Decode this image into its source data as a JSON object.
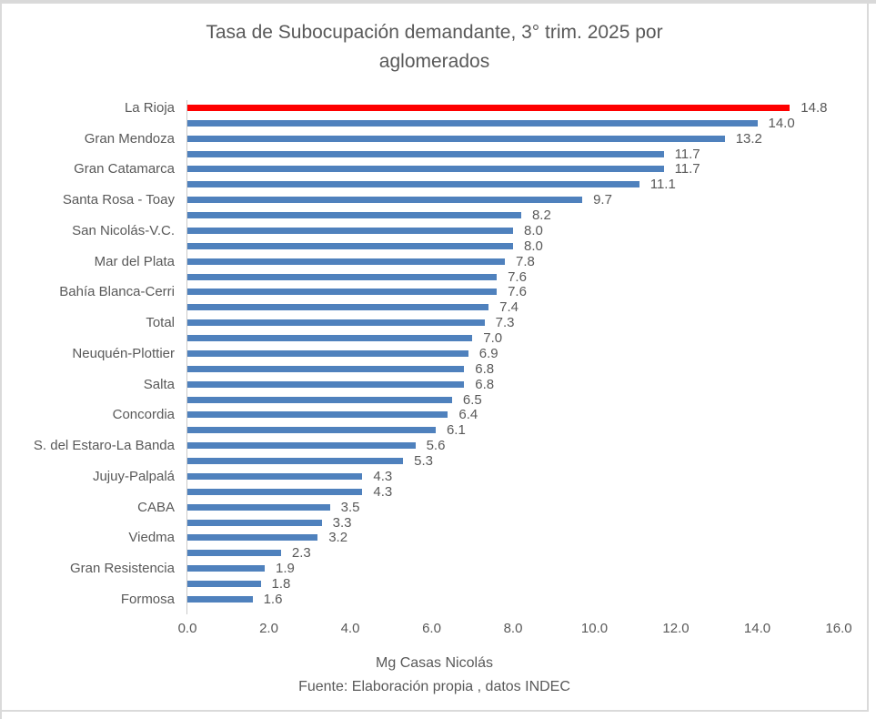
{
  "window": {
    "background": "#ffffff",
    "border_color": "#d9d9d9"
  },
  "chart_data": {
    "type": "bar",
    "orientation": "horizontal",
    "title": "Tasa de Subocupación demandante, 3° trim. 2025 por aglomerados",
    "title_lines": [
      "Tasa de Subocupación demandante, 3° trim. 2025 por",
      "aglomerados"
    ],
    "xlabel": "",
    "ylabel": "",
    "xlim": [
      0,
      16
    ],
    "x_ticks": [
      "0.0",
      "2.0",
      "4.0",
      "6.0",
      "8.0",
      "10.0",
      "12.0",
      "14.0",
      "16.0"
    ],
    "grid": false,
    "legend": false,
    "bar_color": "#4f81bd",
    "highlight_color": "#fe0000",
    "text_color": "#595959",
    "value_label_decimals": 1,
    "rows": [
      {
        "label": "La Rioja",
        "value": 14.8,
        "highlight": true
      },
      {
        "label": "",
        "value": 14.0
      },
      {
        "label": "Gran Mendoza",
        "value": 13.2
      },
      {
        "label": "",
        "value": 11.7
      },
      {
        "label": "Gran Catamarca",
        "value": 11.7
      },
      {
        "label": "",
        "value": 11.1
      },
      {
        "label": "Santa Rosa - Toay",
        "value": 9.7
      },
      {
        "label": "",
        "value": 8.2
      },
      {
        "label": "San Nicolás-V.C.",
        "value": 8.0
      },
      {
        "label": "",
        "value": 8.0
      },
      {
        "label": "Mar del Plata",
        "value": 7.8
      },
      {
        "label": "",
        "value": 7.6
      },
      {
        "label": "Bahía Blanca-Cerri",
        "value": 7.6
      },
      {
        "label": "",
        "value": 7.4
      },
      {
        "label": "Total",
        "value": 7.3
      },
      {
        "label": "",
        "value": 7.0
      },
      {
        "label": "Neuquén-Plottier",
        "value": 6.9
      },
      {
        "label": "",
        "value": 6.8
      },
      {
        "label": "Salta",
        "value": 6.8
      },
      {
        "label": "",
        "value": 6.5
      },
      {
        "label": "Concordia",
        "value": 6.4
      },
      {
        "label": "",
        "value": 6.1
      },
      {
        "label": "S. del Estaro-La Banda",
        "value": 5.6
      },
      {
        "label": "",
        "value": 5.3
      },
      {
        "label": "Jujuy-Palpalá",
        "value": 4.3
      },
      {
        "label": "",
        "value": 4.3
      },
      {
        "label": "CABA",
        "value": 3.5
      },
      {
        "label": "",
        "value": 3.3
      },
      {
        "label": "Viedma",
        "value": 3.2
      },
      {
        "label": "",
        "value": 2.3
      },
      {
        "label": "Gran Resistencia",
        "value": 1.9
      },
      {
        "label": "",
        "value": 1.8
      },
      {
        "label": "Formosa",
        "value": 1.6
      }
    ]
  },
  "footer": {
    "line1": "Mg Casas Nicolás",
    "line2": "Fuente: Elaboración propia , datos INDEC"
  }
}
